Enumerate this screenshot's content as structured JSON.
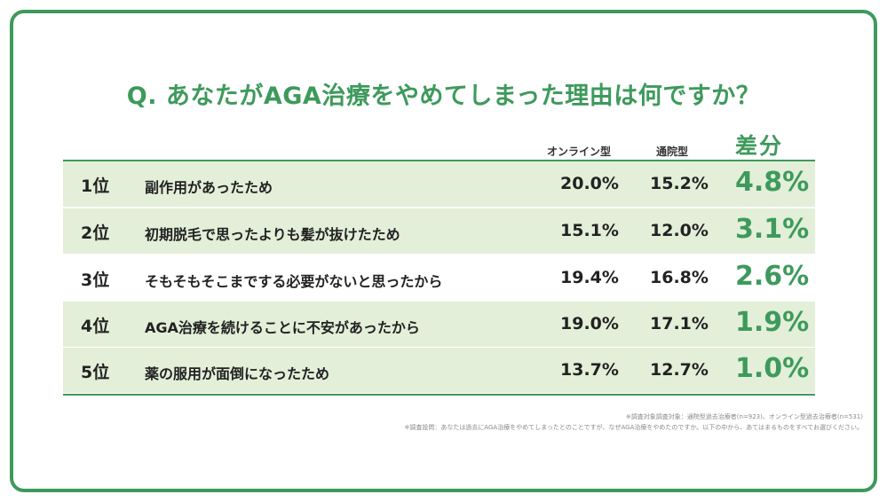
{
  "title": "Q. あなたがAGA治療をやめてしまった理由は何ですか？",
  "columns": {
    "online": "オンライン型",
    "tsuuin": "通院型",
    "diff": "差分"
  },
  "chart_data": {
    "type": "table",
    "title": "Q. あなたがAGA治療をやめてしまった理由は何ですか？",
    "columns": [
      "オンライン型",
      "通院型",
      "差分"
    ],
    "rows": [
      {
        "rank": "1位",
        "reason": "副作用があったため",
        "online": "20.0%",
        "tsuuin": "15.2%",
        "diff": "4.8%"
      },
      {
        "rank": "2位",
        "reason": "初期脱毛で思ったよりも髪が抜けたため",
        "online": "15.1%",
        "tsuuin": "12.0%",
        "diff": "3.1%"
      },
      {
        "rank": "3位",
        "reason": "そもそもそこまでする必要がないと思ったから",
        "online": "19.4%",
        "tsuuin": "16.8%",
        "diff": "2.6%"
      },
      {
        "rank": "4位",
        "reason": "AGA治療を続けることに不安があったから",
        "online": "19.0%",
        "tsuuin": "17.1%",
        "diff": "1.9%"
      },
      {
        "rank": "5位",
        "reason": "薬の服用が面倒になったため",
        "online": "13.7%",
        "tsuuin": "12.7%",
        "diff": "1.0%"
      }
    ]
  },
  "notes": {
    "line1": "※調査対象調査対象：通院型過去治療者(n=923)、オンライン型過去治療者(n=531)",
    "line2": "※調査設問：あなたは過去にAGA治療をやめてしまったとのことですが、なぜAGA治療をやめたのですか。以下の中から、あてはまるものをすべてお選びください。"
  },
  "colors": {
    "accent": "#3e9a5c",
    "row_shade": "#e3efd9"
  }
}
